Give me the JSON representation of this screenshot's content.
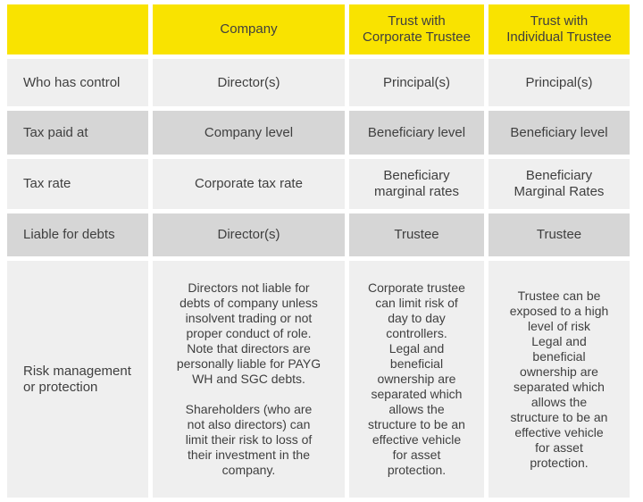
{
  "colors": {
    "header_bg": "#F9E300",
    "row_light": "#EFEFEF",
    "row_dark": "#D6D6D6",
    "text": "#3F3F3F",
    "page_bg": "#FFFFFF"
  },
  "table": {
    "headers": [
      "",
      "Company",
      "Trust with\nCorporate Trustee",
      "Trust with\nIndividual Trustee"
    ],
    "rows": [
      {
        "label": "Who has control",
        "cells": [
          "Director(s)",
          "Principal(s)",
          "Principal(s)"
        ]
      },
      {
        "label": "Tax paid at",
        "cells": [
          "Company level",
          "Beneficiary level",
          "Beneficiary level"
        ]
      },
      {
        "label": "Tax rate",
        "cells": [
          "Corporate tax rate",
          "Beneficiary\nmarginal rates",
          "Beneficiary\nMarginal Rates"
        ]
      },
      {
        "label": "Liable for debts",
        "cells": [
          "Director(s)",
          "Trustee",
          "Trustee"
        ]
      },
      {
        "label": "Risk management\nor protection",
        "cells": [
          "Directors not liable for\ndebts of company unless\ninsolvent trading or not\nproper conduct of role.\nNote that directors are\npersonally liable for PAYG\nWH and SGC debts.\n\nShareholders (who are\nnot also directors) can\nlimit their risk to loss of\ntheir investment in the\ncompany.",
          "Corporate trustee\ncan limit risk of\nday to day\ncontrollers.\nLegal and\nbeneficial\nownership are\nseparated which\nallows the\nstructure to be an\neffective vehicle\nfor asset\nprotection.",
          "Trustee can be\nexposed to a high\nlevel of risk\nLegal and\nbeneficial\nownership are\nseparated which\nallows the\nstructure to be an\neffective vehicle\nfor asset\nprotection."
        ]
      }
    ]
  }
}
